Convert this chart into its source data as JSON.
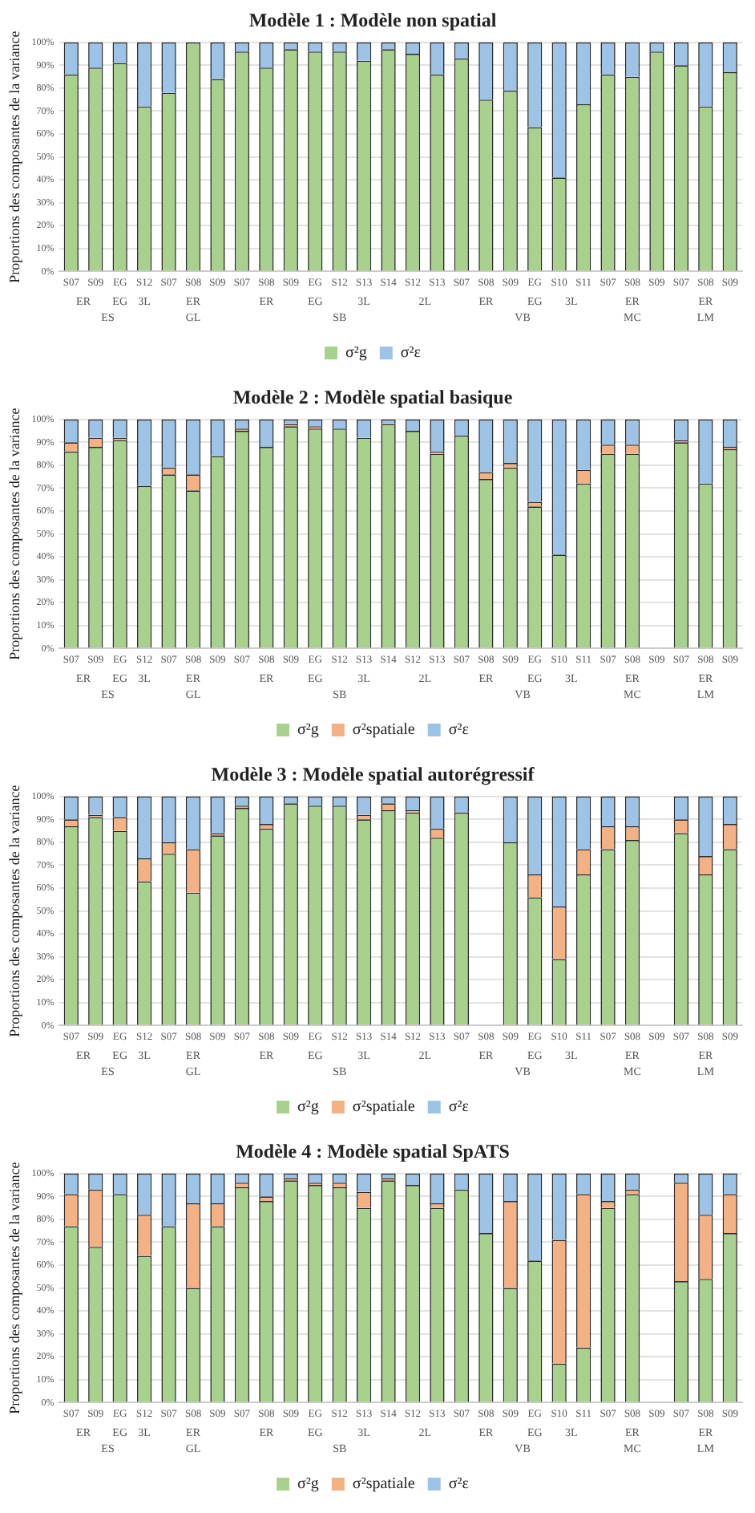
{
  "chart_data": [
    {
      "type": "bar",
      "title": "Modèle 1 : Modèle non spatial",
      "ylabel": "Proportions des composantes de la variance",
      "stacked": true,
      "grid": "y",
      "legend": "bottom",
      "categories": [
        "S07",
        "S09",
        "EG",
        "S12",
        "S07",
        "S08",
        "S09",
        "S07",
        "S08",
        "S09",
        "EG",
        "S12",
        "S13",
        "S14",
        "S12",
        "S13",
        "S07",
        "S08",
        "S09",
        "EG",
        "S10",
        "S11",
        "S07",
        "S08",
        "S09",
        "S07",
        "S08",
        "S09"
      ],
      "annotations": [
        "ER",
        "EG",
        "3L",
        "ER",
        "ER",
        "EG",
        "3L",
        "2L",
        "ER",
        "EG",
        "3L",
        "ER",
        "ER",
        "ES",
        "GL",
        "SB",
        "VB",
        "MC",
        "LM"
      ],
      "ylim": [
        0,
        100
      ],
      "yticks": [
        {
          "value": 0,
          "label": "0%"
        },
        {
          "value": 10,
          "label": "10%"
        },
        {
          "value": 20,
          "label": "20%"
        },
        {
          "value": 30,
          "label": "30%"
        },
        {
          "value": 40,
          "label": "40%"
        },
        {
          "value": 50,
          "label": "50%"
        },
        {
          "value": 60,
          "label": "60%"
        },
        {
          "value": 70,
          "label": "70%"
        },
        {
          "value": 80,
          "label": "80%"
        },
        {
          "value": 90,
          "label": "90%"
        },
        {
          "value": 100,
          "label": "100%"
        }
      ],
      "series": [
        {
          "name": "σ²g",
          "color": "#a9d18e",
          "values": [
            86,
            89,
            91,
            72,
            78,
            100,
            84,
            96,
            89,
            97,
            96,
            96,
            92,
            97,
            95,
            86,
            93,
            75,
            79,
            63,
            41,
            73,
            86,
            85,
            96,
            90,
            72,
            87
          ]
        },
        {
          "name": "σ²ε",
          "color": "#9dc3e6",
          "values": [
            14,
            11,
            9,
            28,
            22,
            0,
            16,
            4,
            11,
            3,
            4,
            4,
            8,
            3,
            5,
            14,
            7,
            25,
            21,
            37,
            59,
            27,
            14,
            15,
            4,
            10,
            28,
            13
          ]
        }
      ]
    },
    {
      "type": "bar",
      "title": "Modèle 2 : Modèle spatial basique",
      "ylabel": "Proportions des composantes de la variance",
      "stacked": true,
      "grid": "y",
      "legend": "bottom",
      "categories": [
        "S07",
        "S09",
        "EG",
        "S12",
        "S07",
        "S08",
        "S09",
        "S07",
        "S08",
        "S09",
        "EG",
        "S12",
        "S13",
        "S14",
        "S12",
        "S13",
        "S07",
        "S08",
        "S09",
        "EG",
        "S10",
        "S11",
        "S07",
        "S08",
        "S09",
        "S07",
        "S08",
        "S09"
      ],
      "annotations": [
        "ER",
        "EG",
        "3L",
        "ER",
        "ER",
        "EG",
        "3L",
        "2L",
        "ER",
        "EG",
        "3L",
        "ER",
        "ER",
        "ES",
        "GL",
        "SB",
        "VB",
        "MC",
        "LM"
      ],
      "ylim": [
        0,
        100
      ],
      "yticks": [
        {
          "value": 0,
          "label": "0%"
        },
        {
          "value": 10,
          "label": "10%"
        },
        {
          "value": 20,
          "label": "20%"
        },
        {
          "value": 30,
          "label": "30%"
        },
        {
          "value": 40,
          "label": "40%"
        },
        {
          "value": 50,
          "label": "50%"
        },
        {
          "value": 60,
          "label": "60%"
        },
        {
          "value": 70,
          "label": "70%"
        },
        {
          "value": 80,
          "label": "80%"
        },
        {
          "value": 90,
          "label": "90%"
        },
        {
          "value": 100,
          "label": "100%"
        }
      ],
      "series": [
        {
          "name": "σ²g",
          "color": "#a9d18e",
          "values": [
            86,
            88,
            91,
            71,
            76,
            69,
            84,
            95,
            88,
            97,
            96,
            96,
            92,
            98,
            95,
            85,
            93,
            74,
            79,
            62,
            41,
            72,
            85,
            85,
            null,
            90,
            72,
            87
          ]
        },
        {
          "name": "σ²spatiale",
          "color": "#f4b183",
          "values": [
            4,
            4,
            1,
            0,
            3,
            7,
            0,
            1,
            0,
            1,
            1,
            0,
            0,
            0,
            0,
            1,
            0,
            3,
            2,
            2,
            0,
            6,
            4,
            4,
            null,
            1,
            0,
            1
          ]
        },
        {
          "name": "σ²ε",
          "color": "#9dc3e6",
          "values": [
            10,
            8,
            8,
            29,
            21,
            24,
            16,
            4,
            12,
            2,
            3,
            4,
            8,
            2,
            5,
            14,
            7,
            23,
            19,
            36,
            59,
            22,
            11,
            11,
            null,
            9,
            28,
            12
          ]
        }
      ]
    },
    {
      "type": "bar",
      "title": "Modèle 3 : Modèle spatial autorégressif",
      "ylabel": "Proportions des composantes de la variance",
      "stacked": true,
      "grid": "y",
      "legend": "bottom",
      "categories": [
        "S07",
        "S09",
        "EG",
        "S12",
        "S07",
        "S08",
        "S09",
        "S07",
        "S08",
        "S09",
        "EG",
        "S12",
        "S13",
        "S14",
        "S12",
        "S13",
        "S07",
        "S08",
        "S09",
        "EG",
        "S10",
        "S11",
        "S07",
        "S08",
        "S09",
        "S07",
        "S08",
        "S09"
      ],
      "annotations": [
        "ER",
        "EG",
        "3L",
        "ER",
        "ER",
        "EG",
        "3L",
        "2L",
        "ER",
        "EG",
        "3L",
        "ER",
        "ER",
        "ES",
        "GL",
        "SB",
        "VB",
        "MC",
        "LM"
      ],
      "ylim": [
        0,
        100
      ],
      "yticks": [
        {
          "value": 0,
          "label": "0%"
        },
        {
          "value": 10,
          "label": "10%"
        },
        {
          "value": 20,
          "label": "20%"
        },
        {
          "value": 30,
          "label": "30%"
        },
        {
          "value": 40,
          "label": "40%"
        },
        {
          "value": 50,
          "label": "50%"
        },
        {
          "value": 60,
          "label": "60%"
        },
        {
          "value": 70,
          "label": "70%"
        },
        {
          "value": 80,
          "label": "80%"
        },
        {
          "value": 90,
          "label": "90%"
        },
        {
          "value": 100,
          "label": "100%"
        }
      ],
      "series": [
        {
          "name": "σ²g",
          "color": "#a9d18e",
          "values": [
            87,
            91,
            85,
            63,
            75,
            58,
            83,
            95,
            86,
            97,
            96,
            96,
            90,
            94,
            93,
            82,
            93,
            null,
            80,
            56,
            29,
            66,
            77,
            81,
            null,
            84,
            66,
            77
          ]
        },
        {
          "name": "σ²spatiale",
          "color": "#f4b183",
          "values": [
            3,
            1,
            6,
            10,
            5,
            19,
            1,
            1,
            2,
            0,
            0,
            0,
            2,
            3,
            1,
            4,
            0,
            null,
            0,
            10,
            23,
            11,
            10,
            6,
            null,
            6,
            8,
            11
          ]
        },
        {
          "name": "σ²ε",
          "color": "#9dc3e6",
          "values": [
            10,
            8,
            9,
            27,
            20,
            23,
            16,
            4,
            12,
            3,
            4,
            4,
            8,
            3,
            6,
            14,
            7,
            null,
            20,
            34,
            48,
            23,
            13,
            13,
            null,
            10,
            26,
            12
          ]
        }
      ]
    },
    {
      "type": "bar",
      "title": "Modèle 4 : Modèle spatial SpATS",
      "ylabel": "Proportions des composantes de la variance",
      "stacked": true,
      "grid": "y",
      "legend": "bottom",
      "categories": [
        "S07",
        "S09",
        "EG",
        "S12",
        "S07",
        "S08",
        "S09",
        "S07",
        "S08",
        "S09",
        "EG",
        "S12",
        "S13",
        "S14",
        "S12",
        "S13",
        "S07",
        "S08",
        "S09",
        "EG",
        "S10",
        "S11",
        "S07",
        "S08",
        "S09",
        "S07",
        "S08",
        "S09"
      ],
      "annotations": [
        "ER",
        "EG",
        "3L",
        "ER",
        "ER",
        "EG",
        "3L",
        "2L",
        "ER",
        "EG",
        "3L",
        "ER",
        "ER",
        "ES",
        "GL",
        "SB",
        "VB",
        "MC",
        "LM"
      ],
      "ylim": [
        0,
        100
      ],
      "yticks": [
        {
          "value": 0,
          "label": "0%"
        },
        {
          "value": 10,
          "label": "10%"
        },
        {
          "value": 20,
          "label": "20%"
        },
        {
          "value": 30,
          "label": "30%"
        },
        {
          "value": 40,
          "label": "40%"
        },
        {
          "value": 50,
          "label": "50%"
        },
        {
          "value": 60,
          "label": "60%"
        },
        {
          "value": 70,
          "label": "70%"
        },
        {
          "value": 80,
          "label": "80%"
        },
        {
          "value": 90,
          "label": "90%"
        },
        {
          "value": 100,
          "label": "100%"
        }
      ],
      "series": [
        {
          "name": "σ²g",
          "color": "#a9d18e",
          "values": [
            77,
            68,
            91,
            64,
            77,
            50,
            77,
            94,
            88,
            97,
            95,
            94,
            85,
            97,
            95,
            85,
            93,
            74,
            50,
            62,
            17,
            24,
            85,
            91,
            null,
            53,
            54,
            74
          ]
        },
        {
          "name": "σ²spatiale",
          "color": "#f4b183",
          "values": [
            14,
            25,
            0,
            18,
            0,
            37,
            10,
            2,
            2,
            1,
            1,
            2,
            7,
            1,
            0,
            2,
            0,
            0,
            38,
            0,
            54,
            67,
            3,
            2,
            null,
            43,
            28,
            17
          ]
        },
        {
          "name": "σ²ε",
          "color": "#9dc3e6",
          "values": [
            9,
            7,
            9,
            18,
            23,
            13,
            13,
            4,
            10,
            2,
            4,
            4,
            8,
            2,
            5,
            13,
            7,
            26,
            12,
            38,
            29,
            9,
            12,
            7,
            null,
            4,
            18,
            9
          ]
        }
      ]
    }
  ]
}
